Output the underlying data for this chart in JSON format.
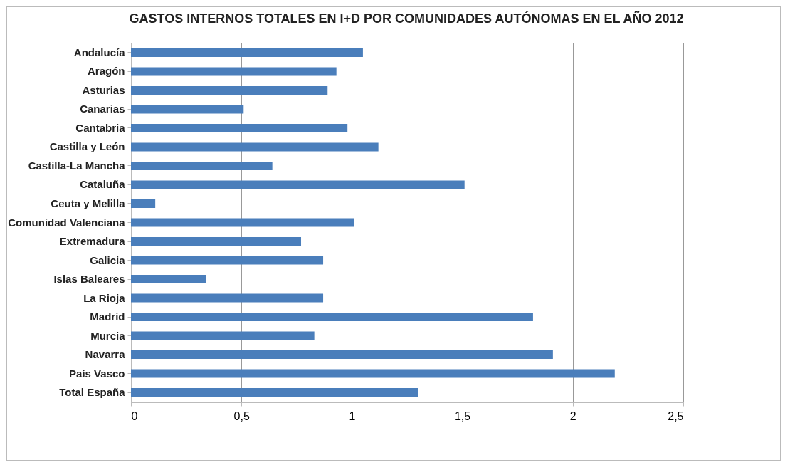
{
  "chart_data": {
    "type": "bar",
    "orientation": "horizontal",
    "title": "GASTOS INTERNOS TOTALES EN I+D POR COMUNIDADES AUTÓNOMAS EN EL AÑO 2012",
    "categories": [
      "Andalucía",
      "Aragón",
      "Asturias",
      "Canarias",
      "Cantabria",
      "Castilla y León",
      "Castilla-La Mancha",
      "Cataluña",
      "Ceuta y Melilla",
      "Comunidad Valenciana",
      "Extremadura",
      "Galicia",
      "Islas Baleares",
      "La Rioja",
      "Madrid",
      "Murcia",
      "Navarra",
      "País Vasco",
      "Total España"
    ],
    "values": [
      1.05,
      0.93,
      0.89,
      0.51,
      0.98,
      1.12,
      0.64,
      1.51,
      0.11,
      1.01,
      0.77,
      0.87,
      0.34,
      0.87,
      1.82,
      0.83,
      1.91,
      2.19,
      1.3
    ],
    "color": "#4a7ebb",
    "xlim": [
      0,
      2.5
    ],
    "xticks": [
      0,
      {
        "value": 0.5,
        "label": "0,5"
      },
      1,
      {
        "value": 1.5,
        "label": "1,5"
      },
      2,
      {
        "value": 2.5,
        "label": "2,5"
      }
    ],
    "grid": "x"
  }
}
